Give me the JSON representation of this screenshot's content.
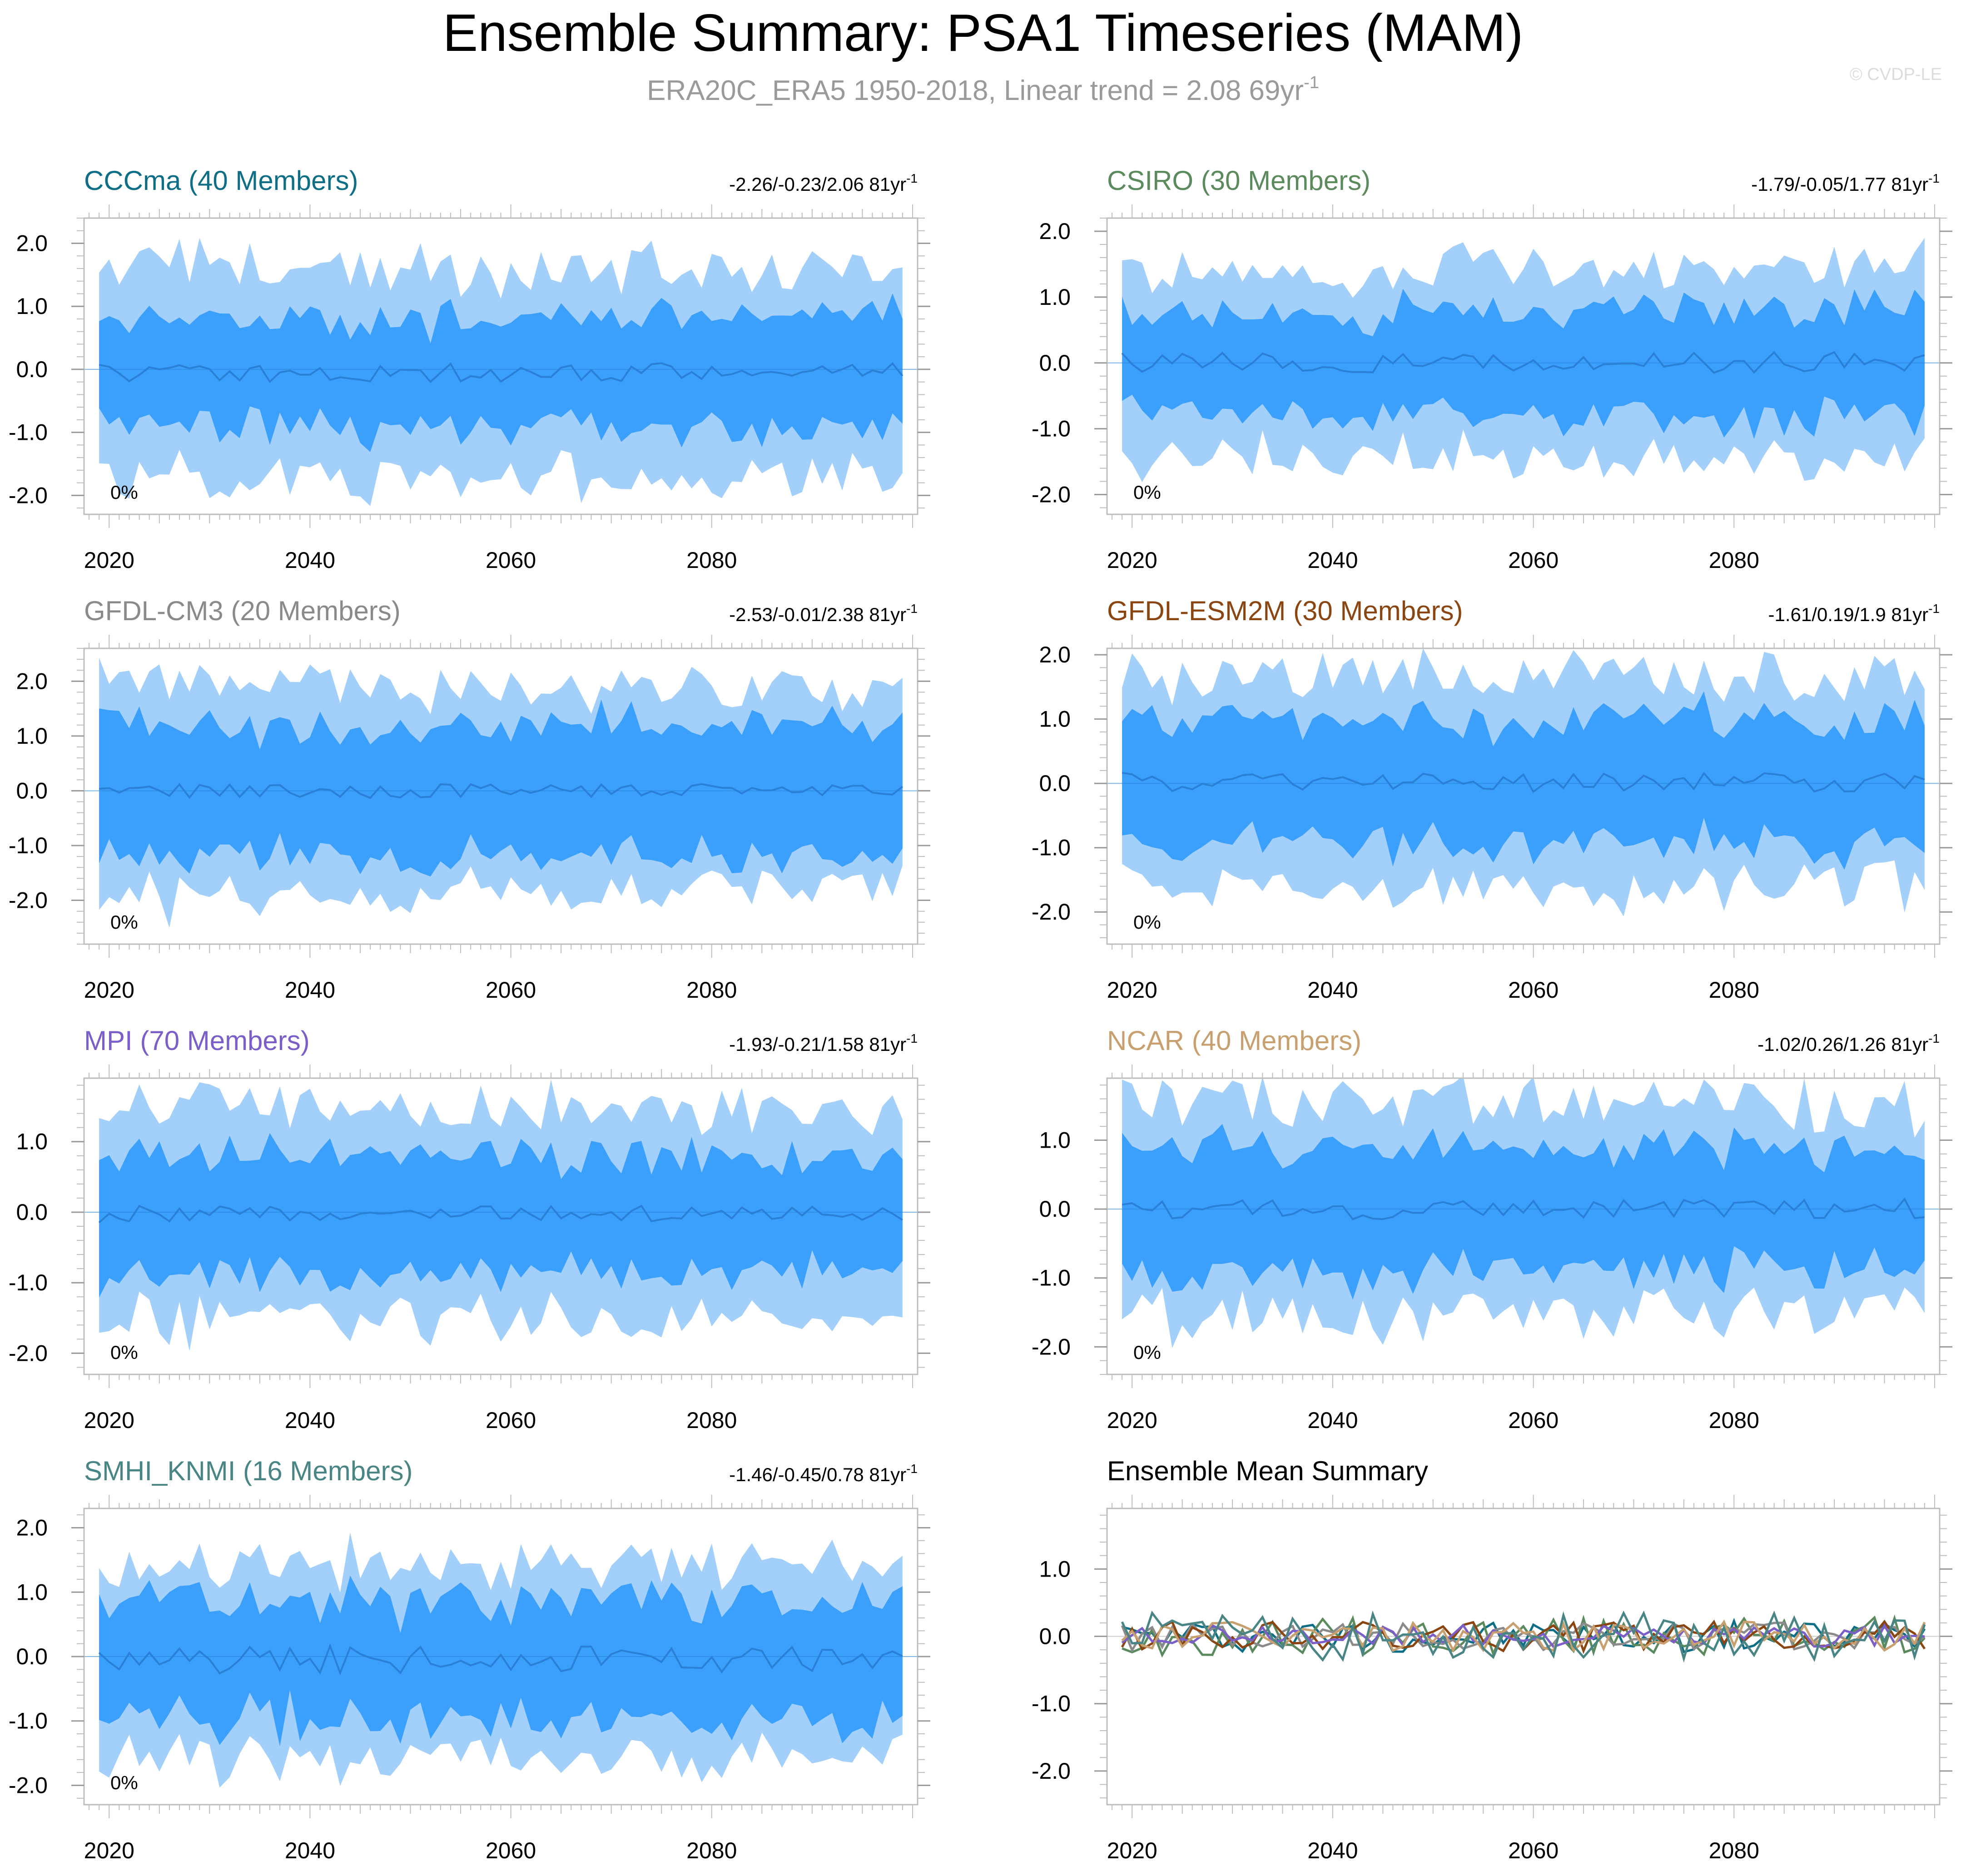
{
  "figure": {
    "title": "Ensemble Summary: PSA1 Timeseries (MAM)",
    "subtitle_main": "ERA20C_ERA5 1950-2018, Linear trend = 2.08 69yr",
    "subtitle_sup": "-1",
    "watermark": "© CVDP-LE",
    "band_colors": {
      "outer": "#a3d0fb",
      "inner": "#3aa0fc",
      "mean": "#2a7fd6"
    }
  },
  "chart_data": [
    {
      "type": "area",
      "title": "CCCma (40 Members)",
      "title_color": "#0e6e85",
      "trend_text": "-2.26/-0.23/2.06 81yr",
      "trend_sup": "-1",
      "pct_label": "0%",
      "ylim": [
        -2.3,
        2.4
      ],
      "yticks": [
        2.0,
        1.0,
        0.0,
        -1.0,
        -2.0
      ],
      "ytick_labels": [
        "2.0",
        "1.0",
        "0.0",
        "-1.0",
        "-2.0"
      ],
      "xlim": [
        2017.5,
        2100.5
      ],
      "xticks": [
        2020,
        2040,
        2060,
        2080
      ],
      "xtick_labels": [
        "2020",
        "2040",
        "2060",
        "2080"
      ],
      "seed": 11,
      "series": {
        "start_year": 2019,
        "end_year": 2099,
        "mean_amp": 0.15,
        "mean_bias": -0.05,
        "inner_start": 0.85,
        "inner_end": 0.9,
        "outer_start": 1.65,
        "outer_end": 1.6,
        "noise": 0.18
      }
    },
    {
      "type": "area",
      "title": "CSIRO (30 Members)",
      "title_color": "#5b8a5d",
      "trend_text": "-1.79/-0.05/1.77 81yr",
      "trend_sup": "-1",
      "pct_label": "0%",
      "ylim": [
        -2.3,
        2.2
      ],
      "yticks": [
        2.0,
        1.0,
        0.0,
        -1.0,
        -2.0
      ],
      "ytick_labels": [
        "2.0",
        "1.0",
        "0.0",
        "-1.0",
        "-2.0"
      ],
      "xlim": [
        2017.5,
        2100.5
      ],
      "xticks": [
        2020,
        2040,
        2060,
        2080
      ],
      "xtick_labels": [
        "2020",
        "2040",
        "2060",
        "2080"
      ],
      "seed": 23,
      "series": {
        "start_year": 2019,
        "end_year": 2099,
        "mean_amp": 0.17,
        "mean_bias": 0.0,
        "inner_start": 0.7,
        "inner_end": 0.9,
        "outer_start": 1.35,
        "outer_end": 1.5,
        "noise": 0.22
      }
    },
    {
      "type": "area",
      "title": "GFDL-CM3 (20 Members)",
      "title_color": "#8a8a8a",
      "trend_text": "-2.53/-0.01/2.38 81yr",
      "trend_sup": "-1",
      "pct_label": "0%",
      "ylim": [
        -2.8,
        2.6
      ],
      "yticks": [
        2.0,
        1.0,
        0.0,
        -1.0,
        -2.0
      ],
      "ytick_labels": [
        "2.0",
        "1.0",
        "0.0",
        "-1.0",
        "-2.0"
      ],
      "xlim": [
        2017.5,
        2100.5
      ],
      "xticks": [
        2020,
        2040,
        2060,
        2080
      ],
      "xtick_labels": [
        "2020",
        "2040",
        "2060",
        "2080"
      ],
      "seed": 37,
      "series": {
        "start_year": 2019,
        "end_year": 2099,
        "mean_amp": 0.13,
        "mean_bias": 0.0,
        "inner_start": 1.15,
        "inner_end": 1.25,
        "outer_start": 1.95,
        "outer_end": 1.7,
        "noise": 0.2
      }
    },
    {
      "type": "area",
      "title": "GFDL-ESM2M (30 Members)",
      "title_color": "#8a4510",
      "trend_text": "-1.61/0.19/1.9 81yr",
      "trend_sup": "-1",
      "pct_label": "0%",
      "ylim": [
        -2.5,
        2.1
      ],
      "yticks": [
        2.0,
        1.0,
        0.0,
        -1.0,
        -2.0
      ],
      "ytick_labels": [
        "2.0",
        "1.0",
        "0.0",
        "-1.0",
        "-2.0"
      ],
      "xlim": [
        2017.5,
        2100.5
      ],
      "xticks": [
        2020,
        2040,
        2060,
        2080
      ],
      "xtick_labels": [
        "2020",
        "2040",
        "2060",
        "2080"
      ],
      "seed": 41,
      "series": {
        "start_year": 2019,
        "end_year": 2099,
        "mean_amp": 0.15,
        "mean_bias": 0.02,
        "inner_start": 0.95,
        "inner_end": 0.95,
        "outer_start": 1.6,
        "outer_end": 1.55,
        "noise": 0.2
      }
    },
    {
      "type": "area",
      "title": "MPI (70 Members)",
      "title_color": "#7b5ec7",
      "trend_text": "-1.93/-0.21/1.58 81yr",
      "trend_sup": "-1",
      "pct_label": "0%",
      "ylim": [
        -2.3,
        1.9
      ],
      "yticks": [
        1.0,
        0.0,
        -1.0,
        -2.0
      ],
      "ytick_labels": [
        "1.0",
        "0.0",
        "-1.0",
        "-2.0"
      ],
      "xlim": [
        2017.5,
        2100.5
      ],
      "xticks": [
        2020,
        2040,
        2060,
        2080
      ],
      "xtick_labels": [
        "2020",
        "2040",
        "2060",
        "2080"
      ],
      "seed": 53,
      "series": {
        "start_year": 2019,
        "end_year": 2099,
        "mean_amp": 0.12,
        "mean_bias": -0.03,
        "inner_start": 0.85,
        "inner_end": 0.8,
        "outer_start": 1.5,
        "outer_end": 1.4,
        "noise": 0.15
      }
    },
    {
      "type": "area",
      "title": "NCAR (40 Members)",
      "title_color": "#c8a070",
      "trend_text": "-1.02/0.26/1.26 81yr",
      "trend_sup": "-1",
      "pct_label": "0%",
      "ylim": [
        -2.4,
        1.9
      ],
      "yticks": [
        1.0,
        0.0,
        -1.0,
        -2.0
      ],
      "ytick_labels": [
        "1.0",
        "0.0",
        "-1.0",
        "-2.0"
      ],
      "xlim": [
        2017.5,
        2100.5
      ],
      "xticks": [
        2020,
        2040,
        2060,
        2080
      ],
      "xtick_labels": [
        "2020",
        "2040",
        "2060",
        "2080"
      ],
      "seed": 67,
      "series": {
        "start_year": 2019,
        "end_year": 2099,
        "mean_amp": 0.15,
        "mean_bias": 0.0,
        "inner_start": 0.95,
        "inner_end": 0.85,
        "outer_start": 1.55,
        "outer_end": 1.4,
        "noise": 0.2
      }
    },
    {
      "type": "area",
      "title": "SMHI_KNMI (16 Members)",
      "title_color": "#4a8585",
      "trend_text": "-1.46/-0.45/0.78 81yr",
      "trend_sup": "-1",
      "pct_label": "0%",
      "ylim": [
        -2.3,
        2.3
      ],
      "yticks": [
        2.0,
        1.0,
        0.0,
        -1.0,
        -2.0
      ],
      "ytick_labels": [
        "2.0",
        "1.0",
        "0.0",
        "-1.0",
        "-2.0"
      ],
      "xlim": [
        2017.5,
        2100.5
      ],
      "xticks": [
        2020,
        2040,
        2060,
        2080
      ],
      "xtick_labels": [
        "2020",
        "2040",
        "2060",
        "2080"
      ],
      "seed": 79,
      "series": {
        "start_year": 2019,
        "end_year": 2099,
        "mean_amp": 0.22,
        "mean_bias": -0.05,
        "inner_start": 0.9,
        "inner_end": 0.95,
        "outer_start": 1.5,
        "outer_end": 1.4,
        "noise": 0.25
      }
    },
    {
      "type": "line",
      "title": "Ensemble Mean Summary",
      "title_color": "#000000",
      "trend_text": "",
      "trend_sup": "",
      "pct_label": "",
      "ylim": [
        -2.5,
        1.9
      ],
      "yticks": [
        1.0,
        0.0,
        -1.0,
        -2.0
      ],
      "ytick_labels": [
        "1.0",
        "0.0",
        "-1.0",
        "-2.0"
      ],
      "xlim": [
        2017.5,
        2100.5
      ],
      "xticks": [
        2020,
        2040,
        2060,
        2080
      ],
      "xtick_labels": [
        "2020",
        "2040",
        "2060",
        "2080"
      ],
      "seed": 97,
      "lines": [
        {
          "name": "CCCma",
          "color": "#0e6e85",
          "amp": 0.17
        },
        {
          "name": "CSIRO",
          "color": "#5b8a5d",
          "amp": 0.2
        },
        {
          "name": "GFDL-CM3",
          "color": "#8a8a8a",
          "amp": 0.15
        },
        {
          "name": "GFDL-ESM2M",
          "color": "#8a4510",
          "amp": 0.16
        },
        {
          "name": "MPI",
          "color": "#7b5ec7",
          "amp": 0.12
        },
        {
          "name": "NCAR",
          "color": "#c8a070",
          "amp": 0.16
        },
        {
          "name": "SMHI_KNMI",
          "color": "#4a8585",
          "amp": 0.25
        }
      ]
    }
  ]
}
